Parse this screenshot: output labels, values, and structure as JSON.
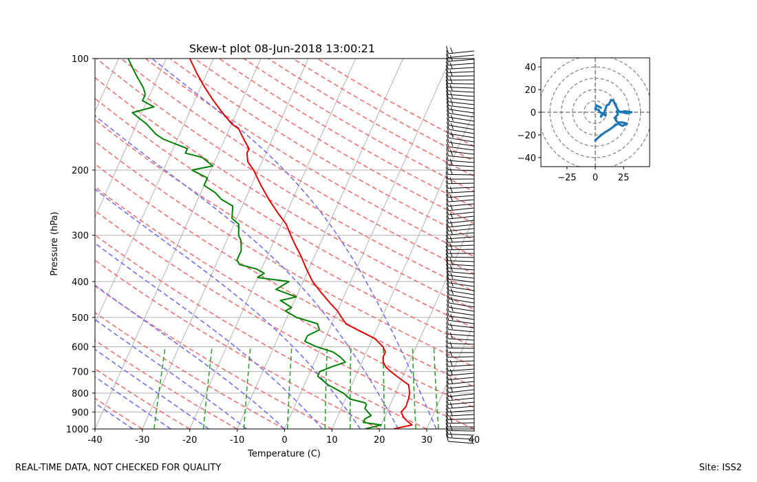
{
  "footer": {
    "disclaimer": "REAL-TIME DATA, NOT CHECKED FOR QUALITY",
    "site": "Site: ISS2"
  },
  "colors": {
    "temperature": "#e00000",
    "dewpoint": "#008000",
    "dry_adiabat": "#f07070",
    "moist_adiabat": "#7070f0",
    "mixing_ratio": "#30a030",
    "isotherm": "#b0b0b0",
    "hodograph": "#1f77b4"
  },
  "chart_data": [
    {
      "type": "line",
      "title": "Skew-t plot 08-Jun-2018 13:00:21",
      "xlabel": "Temperature (C)",
      "ylabel": "Pressure (hPa)",
      "xlim": [
        -40,
        40
      ],
      "ylim": [
        1000,
        100
      ],
      "yscale": "log",
      "grid": true,
      "x_ticks": [
        -40,
        -30,
        -20,
        -10,
        0,
        10,
        20,
        30,
        40
      ],
      "y_ticks": [
        1000,
        900,
        800,
        700,
        600,
        500,
        400,
        300,
        200,
        100
      ],
      "series": [
        {
          "role": "temperature",
          "points": [
            [
              1000,
              23
            ],
            [
              975,
              26.5
            ],
            [
              950,
              25
            ],
            [
              930,
              24
            ],
            [
              900,
              23
            ],
            [
              870,
              23.5
            ],
            [
              830,
              23.3
            ],
            [
              800,
              23
            ],
            [
              760,
              22
            ],
            [
              730,
              19.5
            ],
            [
              700,
              17
            ],
            [
              680,
              15.5
            ],
            [
              660,
              14.5
            ],
            [
              640,
              14
            ],
            [
              620,
              14
            ],
            [
              600,
              13
            ],
            [
              570,
              10.5
            ],
            [
              540,
              6
            ],
            [
              520,
              3
            ],
            [
              500,
              1.5
            ],
            [
              480,
              0
            ],
            [
              460,
              -2
            ],
            [
              430,
              -5
            ],
            [
              400,
              -8
            ],
            [
              370,
              -10.5
            ],
            [
              340,
              -13
            ],
            [
              320,
              -15
            ],
            [
              300,
              -17
            ],
            [
              280,
              -19
            ],
            [
              260,
              -22
            ],
            [
              240,
              -25
            ],
            [
              220,
              -28
            ],
            [
              200,
              -31
            ],
            [
              190,
              -33
            ],
            [
              180,
              -34
            ],
            [
              175,
              -34
            ],
            [
              165,
              -36
            ],
            [
              155,
              -38
            ],
            [
              150,
              -40
            ],
            [
              140,
              -43
            ],
            [
              130,
              -46
            ],
            [
              120,
              -49
            ],
            [
              110,
              -52
            ],
            [
              100,
              -55
            ]
          ]
        },
        {
          "role": "dewpoint",
          "points": [
            [
              1000,
              17
            ],
            [
              975,
              20
            ],
            [
              960,
              16
            ],
            [
              940,
              16
            ],
            [
              920,
              17
            ],
            [
              900,
              16
            ],
            [
              880,
              15
            ],
            [
              860,
              15
            ],
            [
              850,
              14.5
            ],
            [
              830,
              11
            ],
            [
              800,
              9
            ],
            [
              780,
              7
            ],
            [
              760,
              5
            ],
            [
              740,
              3.5
            ],
            [
              720,
              2
            ],
            [
              700,
              2
            ],
            [
              680,
              4
            ],
            [
              660,
              6.5
            ],
            [
              640,
              5
            ],
            [
              620,
              3
            ],
            [
              600,
              -1
            ],
            [
              580,
              -4
            ],
            [
              560,
              -4
            ],
            [
              540,
              -2
            ],
            [
              520,
              -3
            ],
            [
              500,
              -8
            ],
            [
              480,
              -11
            ],
            [
              470,
              -10
            ],
            [
              450,
              -13
            ],
            [
              440,
              -10
            ],
            [
              420,
              -15
            ],
            [
              400,
              -13
            ],
            [
              390,
              -20
            ],
            [
              380,
              -19
            ],
            [
              370,
              -21
            ],
            [
              360,
              -25
            ],
            [
              350,
              -26
            ],
            [
              330,
              -26
            ],
            [
              310,
              -27
            ],
            [
              300,
              -28
            ],
            [
              280,
              -29
            ],
            [
              270,
              -31
            ],
            [
              250,
              -32
            ],
            [
              240,
              -35
            ],
            [
              230,
              -37
            ],
            [
              220,
              -40
            ],
            [
              210,
              -40
            ],
            [
              200,
              -44
            ],
            [
              195,
              -40
            ],
            [
              185,
              -43
            ],
            [
              180,
              -47
            ],
            [
              175,
              -47
            ],
            [
              165,
              -53
            ],
            [
              160,
              -55
            ],
            [
              150,
              -58
            ],
            [
              145,
              -60
            ],
            [
              140,
              -62
            ],
            [
              135,
              -58
            ],
            [
              130,
              -61
            ],
            [
              125,
              -61
            ],
            [
              120,
              -62
            ],
            [
              110,
              -65
            ],
            [
              100,
              -68
            ]
          ]
        }
      ]
    },
    {
      "type": "line",
      "title": "",
      "xlim": [
        -48,
        48
      ],
      "ylim": [
        -48,
        48
      ],
      "x_ticks": [
        -25,
        0,
        25
      ],
      "y_ticks": [
        -40,
        -20,
        0,
        20,
        40
      ],
      "rings": [
        10,
        20,
        30,
        40,
        50
      ],
      "series": [
        {
          "role": "hodograph",
          "points": [
            [
              0,
              -25
            ],
            [
              3,
              -22
            ],
            [
              8,
              -18
            ],
            [
              13,
              -15
            ],
            [
              17,
              -12
            ],
            [
              20,
              -10
            ],
            [
              24,
              -12
            ],
            [
              28,
              -10
            ],
            [
              24,
              -9
            ],
            [
              20,
              -9
            ],
            [
              18,
              -7
            ],
            [
              18,
              -4
            ],
            [
              17,
              -5
            ],
            [
              20,
              -2
            ],
            [
              19,
              1
            ],
            [
              24,
              0
            ],
            [
              28,
              -1
            ],
            [
              32,
              0
            ],
            [
              26,
              1
            ],
            [
              22,
              0
            ],
            [
              20,
              2
            ],
            [
              17,
              8
            ],
            [
              16,
              10
            ],
            [
              14,
              11
            ],
            [
              13,
              9
            ],
            [
              12,
              7
            ],
            [
              10,
              6
            ],
            [
              8,
              0
            ],
            [
              9,
              -3
            ],
            [
              6,
              -1
            ],
            [
              5,
              -4
            ],
            [
              7,
              -1
            ],
            [
              4,
              0
            ],
            [
              3,
              2
            ],
            [
              0,
              3
            ],
            [
              1,
              6
            ],
            [
              3,
              5
            ],
            [
              5,
              4
            ]
          ]
        }
      ]
    }
  ]
}
